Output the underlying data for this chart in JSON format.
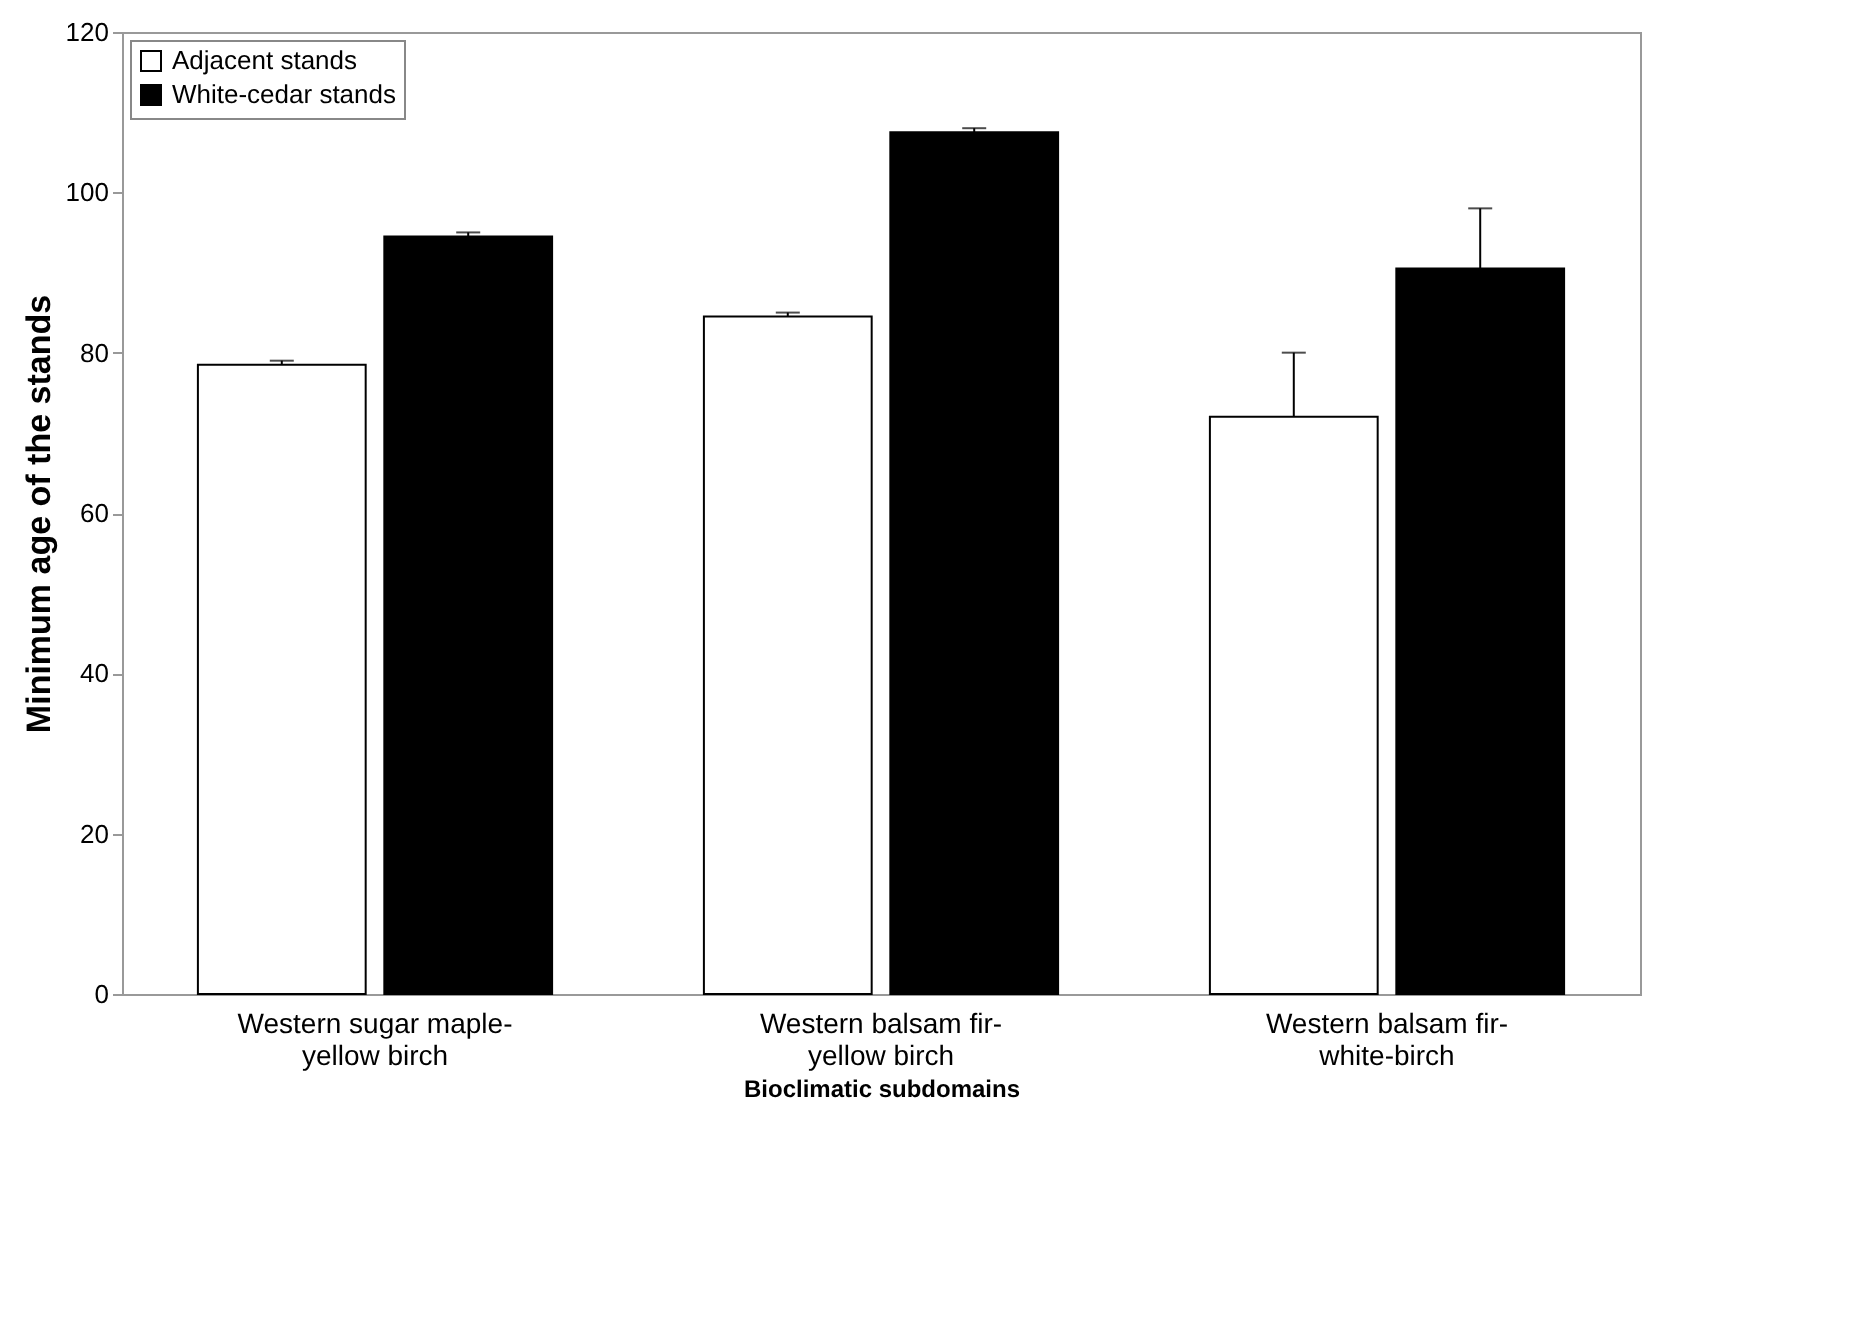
{
  "chart_data": {
    "type": "bar",
    "xlabel": "Bioclimatic subdomains",
    "ylabel": "Minimum age of the stands",
    "categories": [
      "Western sugar maple-yellow birch",
      "Western balsam fir-yellow birch",
      "Western balsam fir-white-birch"
    ],
    "series": [
      {
        "name": "Adjacent stands",
        "color": "#ffffff",
        "values": [
          78.5,
          84.5,
          72
        ],
        "errors": [
          [
            78.5,
            79
          ],
          [
            84.5,
            85
          ],
          [
            72,
            80
          ]
        ]
      },
      {
        "name": "White-cedar stands",
        "color": "#000000",
        "values": [
          94.5,
          107.5,
          90.5
        ],
        "errors": [
          [
            94.5,
            95
          ],
          [
            107.5,
            108
          ],
          [
            90.5,
            98
          ]
        ]
      }
    ],
    "ylim": [
      0,
      120
    ],
    "yticks": [
      0,
      20,
      40,
      60,
      80,
      100,
      120
    ],
    "grid": false,
    "legend": "top left"
  }
}
